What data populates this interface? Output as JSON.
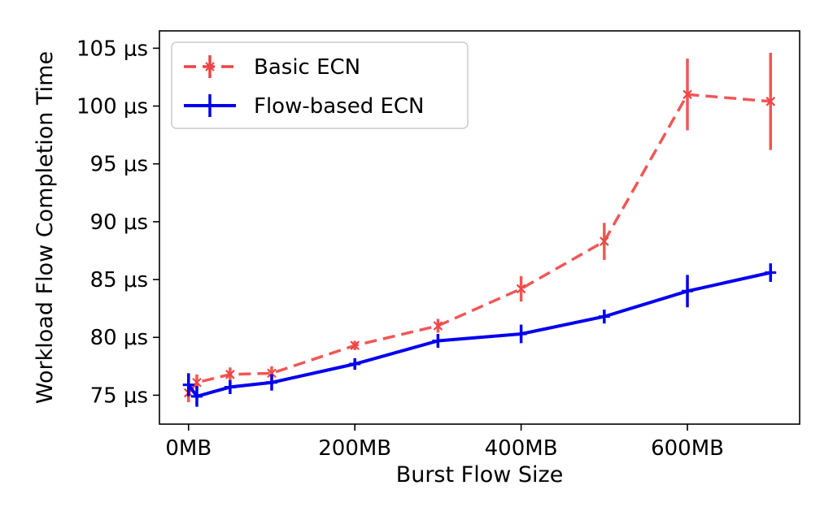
{
  "chart_data": {
    "type": "line",
    "title": "",
    "xlabel": "Burst Flow Size",
    "ylabel": "Workload Flow Completion Time",
    "xlim": [
      -35,
      735
    ],
    "ylim": [
      72.5,
      106.5
    ],
    "x_ticks": [
      {
        "value": 0,
        "label": "0MB"
      },
      {
        "value": 200,
        "label": "200MB"
      },
      {
        "value": 400,
        "label": "400MB"
      },
      {
        "value": 600,
        "label": "600MB"
      }
    ],
    "y_ticks": [
      {
        "value": 75,
        "label": "75 μs"
      },
      {
        "value": 80,
        "label": "80 μs"
      },
      {
        "value": 85,
        "label": "85 μs"
      },
      {
        "value": 90,
        "label": "90 μs"
      },
      {
        "value": 95,
        "label": "95 μs"
      },
      {
        "value": 100,
        "label": "100 μs"
      },
      {
        "value": 105,
        "label": "105 μs"
      }
    ],
    "grid": false,
    "legend_position": "top-left",
    "series": [
      {
        "name": "Basic ECN",
        "color": "#ef4444",
        "line_style": "dashed",
        "marker": "x",
        "x": [
          0,
          10,
          50,
          100,
          200,
          300,
          400,
          500,
          600,
          700
        ],
        "y": [
          75.2,
          76.1,
          76.8,
          76.9,
          79.3,
          81.0,
          84.2,
          88.3,
          101.0,
          100.4
        ],
        "error": [
          0.8,
          0.7,
          0.6,
          0.6,
          0.4,
          0.6,
          1.1,
          1.6,
          3.1,
          4.2
        ]
      },
      {
        "name": "Flow-based ECN",
        "color": "#0000ee",
        "line_style": "solid",
        "marker": "+",
        "x": [
          0,
          10,
          50,
          100,
          200,
          300,
          400,
          500,
          600,
          700
        ],
        "y": [
          75.9,
          74.9,
          75.7,
          76.1,
          77.7,
          79.7,
          80.3,
          81.8,
          84.0,
          85.6
        ],
        "error": [
          1.0,
          0.9,
          0.6,
          0.7,
          0.5,
          0.6,
          0.8,
          0.6,
          1.4,
          0.8
        ]
      }
    ]
  }
}
